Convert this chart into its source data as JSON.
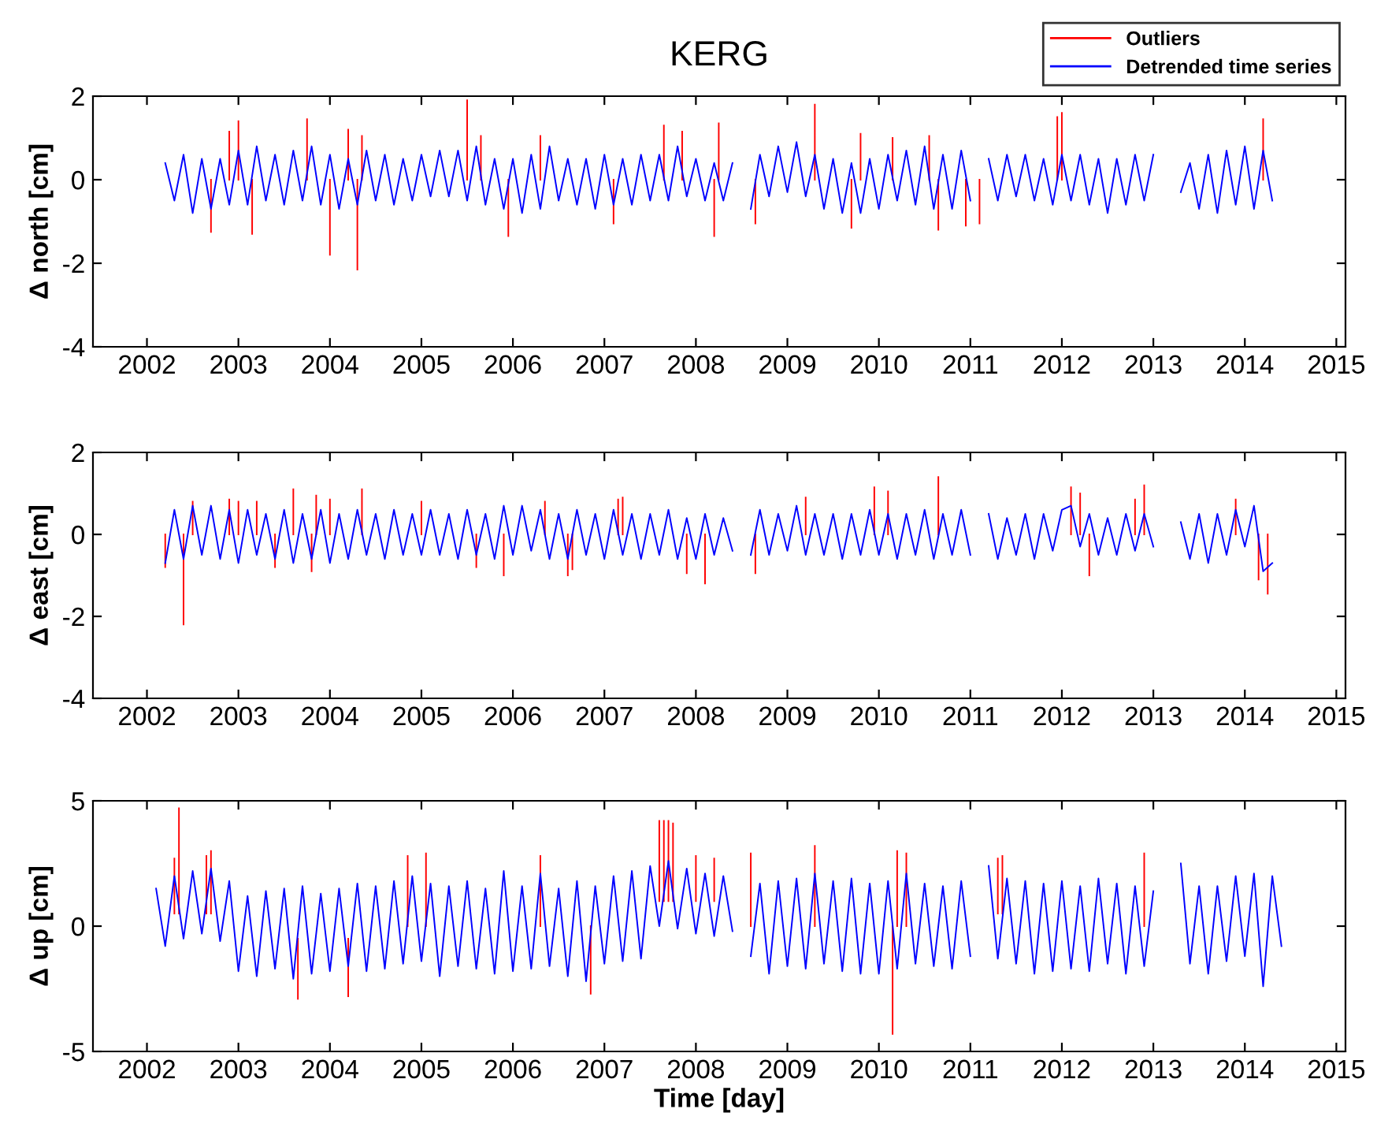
{
  "chart_data": [
    {
      "type": "line",
      "title": "KERG",
      "ylabel": "Δ north [cm]",
      "xlim": [
        2001.41,
        2015.1
      ],
      "xticks": [
        2002,
        2003,
        2004,
        2005,
        2006,
        2007,
        2008,
        2009,
        2010,
        2011,
        2012,
        2013,
        2014,
        2015
      ],
      "ylim": [
        -4,
        2
      ],
      "yticks": [
        -4,
        -2,
        0,
        2
      ],
      "grid": false,
      "legend": "top right",
      "series": [
        {
          "name": "Outliers",
          "color": "#ff0000",
          "x": [
            2002.7,
            2002.7,
            null,
            2002.9,
            2002.9,
            null,
            2003.0,
            2003.0,
            null,
            2003.15,
            2003.15,
            null,
            2003.75,
            2003.75,
            null,
            2004.0,
            2004.0,
            null,
            2004.2,
            2004.2,
            null,
            2004.3,
            2004.3,
            null,
            2004.35,
            2004.35,
            null,
            2005.5,
            2005.5,
            null,
            2005.65,
            2005.65,
            null,
            2005.95,
            2005.95,
            null,
            2006.3,
            2006.3,
            null,
            2007.1,
            2007.1,
            null,
            2007.65,
            2007.65,
            null,
            2007.85,
            2007.85,
            null,
            2008.2,
            2008.2,
            null,
            2008.25,
            2008.25,
            null,
            2008.65,
            2008.65,
            null,
            2009.3,
            2009.3,
            null,
            2009.7,
            2009.7,
            null,
            2009.8,
            2009.8,
            null,
            2010.15,
            2010.15,
            null,
            2010.55,
            2010.55,
            null,
            2010.65,
            2010.65,
            null,
            2010.95,
            2010.95,
            null,
            2011.1,
            2011.1,
            null,
            2011.95,
            2011.95,
            null,
            2012.0,
            2012.0,
            null,
            2014.2,
            2014.2
          ],
          "values": [
            0,
            -1.25,
            null,
            0,
            1.15,
            null,
            0,
            1.4,
            null,
            0,
            -1.3,
            null,
            0,
            1.45,
            null,
            0,
            -1.8,
            null,
            0,
            1.2,
            null,
            0,
            -2.15,
            null,
            0,
            1.05,
            null,
            0,
            1.9,
            null,
            0,
            1.05,
            null,
            0,
            -1.35,
            null,
            0,
            1.05,
            null,
            0,
            -1.05,
            null,
            0,
            1.3,
            null,
            0,
            1.15,
            null,
            0,
            -1.35,
            null,
            0,
            1.35,
            null,
            0,
            -1.05,
            null,
            0,
            1.8,
            null,
            0,
            -1.15,
            null,
            0,
            1.1,
            null,
            0,
            1.0,
            null,
            0,
            1.05,
            null,
            0,
            -1.2,
            null,
            0,
            -1.1,
            null,
            0,
            -1.05,
            null,
            0,
            1.5,
            null,
            0,
            1.6,
            null,
            0,
            1.45
          ]
        },
        {
          "name": "Detrended time series",
          "color": "#0000ff",
          "x": [
            2002.2,
            2002.3,
            2002.4,
            2002.5,
            2002.6,
            2002.7,
            2002.8,
            2002.9,
            2003.0,
            2003.1,
            2003.2,
            2003.3,
            2003.4,
            2003.5,
            2003.6,
            2003.7,
            2003.8,
            2003.9,
            2004.0,
            2004.1,
            2004.2,
            2004.3,
            2004.4,
            2004.5,
            2004.6,
            2004.7,
            2004.8,
            2004.9,
            2005.0,
            2005.1,
            2005.2,
            2005.3,
            2005.4,
            2005.5,
            2005.6,
            2005.7,
            2005.8,
            2005.9,
            2006.0,
            2006.1,
            2006.2,
            2006.3,
            2006.4,
            2006.5,
            2006.6,
            2006.7,
            2006.8,
            2006.9,
            2007.0,
            2007.1,
            2007.2,
            2007.3,
            2007.4,
            2007.5,
            2007.6,
            2007.7,
            2007.8,
            2007.9,
            2008.0,
            2008.1,
            2008.2,
            2008.3,
            2008.4,
            2008.5,
            2008.6,
            2008.7,
            2008.8,
            2008.9,
            2009.0,
            2009.1,
            2009.2,
            2009.3,
            2009.4,
            2009.5,
            2009.6,
            2009.7,
            2009.8,
            2009.9,
            2010.0,
            2010.1,
            2010.2,
            2010.3,
            2010.4,
            2010.5,
            2010.6,
            2010.7,
            2010.8,
            2010.9,
            2011.0,
            2011.1,
            2011.2,
            2011.3,
            2011.4,
            2011.5,
            2011.6,
            2011.7,
            2011.8,
            2011.9,
            2012.0,
            2012.1,
            2012.2,
            2012.3,
            2012.4,
            2012.5,
            2012.6,
            2012.7,
            2012.8,
            2012.9,
            2013.0,
            2013.1,
            2013.2,
            2013.3,
            2013.4,
            2013.5,
            2013.6,
            2013.7,
            2013.8,
            2013.9,
            2014.0,
            2014.1,
            2014.2,
            2014.3
          ],
          "values": [
            0.4,
            -0.5,
            0.6,
            -0.8,
            0.5,
            -0.7,
            0.5,
            -0.6,
            0.7,
            -0.6,
            0.8,
            -0.5,
            0.6,
            -0.6,
            0.7,
            -0.5,
            0.8,
            -0.6,
            0.6,
            -0.7,
            0.5,
            -0.6,
            0.7,
            -0.5,
            0.6,
            -0.6,
            0.5,
            -0.5,
            0.6,
            -0.4,
            0.7,
            -0.4,
            0.7,
            -0.5,
            0.8,
            -0.6,
            0.5,
            -0.7,
            0.5,
            -0.8,
            0.6,
            -0.7,
            0.8,
            -0.5,
            0.5,
            -0.6,
            0.5,
            -0.7,
            0.6,
            -0.6,
            0.5,
            -0.6,
            0.6,
            -0.5,
            0.6,
            -0.5,
            0.8,
            -0.4,
            0.5,
            -0.5,
            0.4,
            -0.5,
            0.4,
            null,
            -0.7,
            0.6,
            -0.4,
            0.8,
            -0.3,
            0.9,
            -0.4,
            0.6,
            -0.7,
            0.5,
            -0.8,
            0.4,
            -0.8,
            0.5,
            -0.7,
            0.6,
            -0.5,
            0.7,
            -0.6,
            0.8,
            -0.7,
            0.6,
            -0.7,
            0.7,
            -0.5,
            null,
            0.5,
            -0.5,
            0.6,
            -0.4,
            0.6,
            -0.5,
            0.5,
            -0.6,
            0.6,
            -0.5,
            0.6,
            -0.6,
            0.5,
            -0.8,
            0.5,
            -0.6,
            0.6,
            -0.5,
            0.6,
            null,
            null,
            -0.3,
            0.4,
            -0.7,
            0.6,
            -0.8,
            0.7,
            -0.6,
            0.8,
            -0.7,
            0.7,
            -0.5
          ]
        }
      ]
    },
    {
      "type": "line",
      "ylabel": "Δ east [cm]",
      "xlim": [
        2001.41,
        2015.1
      ],
      "xticks": [
        2002,
        2003,
        2004,
        2005,
        2006,
        2007,
        2008,
        2009,
        2010,
        2011,
        2012,
        2013,
        2014,
        2015
      ],
      "ylim": [
        -4,
        2
      ],
      "yticks": [
        -4,
        -2,
        0,
        2
      ],
      "grid": false,
      "series": [
        {
          "color": "#ff0000",
          "x": [
            2002.2,
            2002.2,
            null,
            2002.4,
            2002.4,
            null,
            2002.5,
            2002.5,
            null,
            2002.9,
            2002.9,
            null,
            2003.0,
            2003.0,
            null,
            2003.2,
            2003.2,
            null,
            2003.4,
            2003.4,
            null,
            2003.6,
            2003.6,
            null,
            2003.8,
            2003.8,
            null,
            2003.85,
            2003.85,
            null,
            2004.0,
            2004.0,
            null,
            2004.35,
            2004.35,
            null,
            2005.0,
            2005.0,
            null,
            2005.6,
            2005.6,
            null,
            2005.9,
            2005.9,
            null,
            2006.35,
            2006.35,
            null,
            2006.6,
            2006.6,
            null,
            2006.65,
            2006.65,
            null,
            2007.15,
            2007.15,
            null,
            2007.2,
            2007.2,
            null,
            2007.9,
            2007.9,
            null,
            2008.1,
            2008.1,
            null,
            2008.65,
            2008.65,
            null,
            2009.2,
            2009.2,
            null,
            2009.95,
            2009.95,
            null,
            2010.1,
            2010.1,
            null,
            2010.65,
            2010.65,
            null,
            2012.1,
            2012.1,
            null,
            2012.2,
            2012.2,
            null,
            2012.3,
            2012.3,
            null,
            2012.8,
            2012.8,
            null,
            2012.9,
            2012.9,
            null,
            2013.9,
            2013.9,
            null,
            2014.15,
            2014.15,
            null,
            2014.25,
            2014.25
          ],
          "values": [
            0,
            -0.8,
            null,
            0,
            -2.2,
            null,
            0,
            0.8,
            null,
            0,
            0.85,
            null,
            0,
            0.8,
            null,
            0,
            0.8,
            null,
            0,
            -0.8,
            null,
            0,
            1.1,
            null,
            0,
            -0.9,
            null,
            0,
            0.95,
            null,
            0,
            0.85,
            null,
            0,
            1.1,
            null,
            0,
            0.8,
            null,
            0,
            -0.8,
            null,
            0,
            -1.0,
            null,
            0,
            0.8,
            null,
            0,
            -1.0,
            null,
            0,
            -0.85,
            null,
            0,
            0.85,
            null,
            0,
            0.9,
            null,
            0,
            -0.95,
            null,
            0,
            -1.2,
            null,
            0,
            -0.95,
            null,
            0,
            0.9,
            null,
            0,
            1.15,
            null,
            0,
            1.05,
            null,
            0,
            1.4,
            null,
            0,
            1.15,
            null,
            0,
            1.0,
            null,
            0,
            -1.0,
            null,
            0,
            0.85,
            null,
            0,
            1.2,
            null,
            0,
            0.85,
            null,
            0,
            -1.1,
            null,
            0,
            -1.45
          ]
        },
        {
          "color": "#0000ff",
          "x": [
            2002.2,
            2002.3,
            2002.4,
            2002.5,
            2002.6,
            2002.7,
            2002.8,
            2002.9,
            2003.0,
            2003.1,
            2003.2,
            2003.3,
            2003.4,
            2003.5,
            2003.6,
            2003.7,
            2003.8,
            2003.9,
            2004.0,
            2004.1,
            2004.2,
            2004.3,
            2004.4,
            2004.5,
            2004.6,
            2004.7,
            2004.8,
            2004.9,
            2005.0,
            2005.1,
            2005.2,
            2005.3,
            2005.4,
            2005.5,
            2005.6,
            2005.7,
            2005.8,
            2005.9,
            2006.0,
            2006.1,
            2006.2,
            2006.3,
            2006.4,
            2006.5,
            2006.6,
            2006.7,
            2006.8,
            2006.9,
            2007.0,
            2007.1,
            2007.2,
            2007.3,
            2007.4,
            2007.5,
            2007.6,
            2007.7,
            2007.8,
            2007.9,
            2008.0,
            2008.1,
            2008.2,
            2008.3,
            2008.4,
            2008.5,
            2008.6,
            2008.7,
            2008.8,
            2008.9,
            2009.0,
            2009.1,
            2009.2,
            2009.3,
            2009.4,
            2009.5,
            2009.6,
            2009.7,
            2009.8,
            2009.9,
            2010.0,
            2010.1,
            2010.2,
            2010.3,
            2010.4,
            2010.5,
            2010.6,
            2010.7,
            2010.8,
            2010.9,
            2011.0,
            2011.1,
            2011.2,
            2011.3,
            2011.4,
            2011.5,
            2011.6,
            2011.7,
            2011.8,
            2011.9,
            2012.0,
            2012.1,
            2012.2,
            2012.3,
            2012.4,
            2012.5,
            2012.6,
            2012.7,
            2012.8,
            2012.9,
            2013.0,
            2013.1,
            2013.2,
            2013.3,
            2013.4,
            2013.5,
            2013.6,
            2013.7,
            2013.8,
            2013.9,
            2014.0,
            2014.1,
            2014.2,
            2014.3
          ],
          "values": [
            -0.7,
            0.6,
            -0.6,
            0.7,
            -0.5,
            0.7,
            -0.6,
            0.6,
            -0.7,
            0.6,
            -0.5,
            0.5,
            -0.6,
            0.6,
            -0.7,
            0.5,
            -0.6,
            0.6,
            -0.7,
            0.5,
            -0.6,
            0.6,
            -0.5,
            0.5,
            -0.6,
            0.6,
            -0.5,
            0.5,
            -0.5,
            0.6,
            -0.5,
            0.5,
            -0.6,
            0.6,
            -0.5,
            0.5,
            -0.6,
            0.7,
            -0.5,
            0.7,
            -0.4,
            0.6,
            -0.6,
            0.5,
            -0.6,
            0.6,
            -0.5,
            0.5,
            -0.6,
            0.6,
            -0.5,
            0.5,
            -0.6,
            0.5,
            -0.5,
            0.6,
            -0.6,
            0.4,
            -0.6,
            0.5,
            -0.5,
            0.4,
            -0.4,
            null,
            -0.5,
            0.6,
            -0.5,
            0.5,
            -0.4,
            0.7,
            -0.5,
            0.5,
            -0.5,
            0.5,
            -0.6,
            0.5,
            -0.5,
            0.6,
            -0.5,
            0.5,
            -0.6,
            0.5,
            -0.5,
            0.6,
            -0.6,
            0.5,
            -0.5,
            0.6,
            -0.5,
            null,
            0.5,
            -0.6,
            0.4,
            -0.5,
            0.5,
            -0.6,
            0.5,
            -0.4,
            0.6,
            0.7,
            -0.3,
            0.5,
            -0.5,
            0.4,
            -0.5,
            0.5,
            -0.4,
            0.5,
            -0.3,
            null,
            null,
            0.3,
            -0.6,
            0.5,
            -0.7,
            0.5,
            -0.5,
            0.6,
            -0.3,
            0.7,
            -0.9,
            -0.7
          ]
        }
      ]
    },
    {
      "type": "line",
      "ylabel": "Δ up [cm]",
      "xlabel": "Time [day]",
      "xlim": [
        2001.41,
        2015.1
      ],
      "xticks": [
        2002,
        2003,
        2004,
        2005,
        2006,
        2007,
        2008,
        2009,
        2010,
        2011,
        2012,
        2013,
        2014,
        2015
      ],
      "ylim": [
        -5,
        5
      ],
      "yticks": [
        -5,
        0,
        5
      ],
      "grid": false,
      "series": [
        {
          "color": "#ff0000",
          "x": [
            2002.3,
            2002.3,
            null,
            2002.35,
            2002.35,
            null,
            2002.65,
            2002.65,
            null,
            2002.7,
            2002.7,
            null,
            2003.65,
            2003.65,
            null,
            2004.2,
            2004.2,
            null,
            2004.85,
            2004.85,
            null,
            2005.05,
            2005.05,
            null,
            2006.3,
            2006.3,
            null,
            2006.85,
            2006.85,
            null,
            2007.6,
            2007.6,
            null,
            2007.65,
            2007.65,
            null,
            2007.7,
            2007.7,
            null,
            2007.75,
            2007.75,
            null,
            2008.0,
            2008.0,
            null,
            2008.2,
            2008.2,
            null,
            2008.6,
            2008.6,
            null,
            2009.3,
            2009.3,
            null,
            2010.15,
            2010.15,
            null,
            2010.2,
            2010.2,
            null,
            2010.3,
            2010.3,
            null,
            2011.3,
            2011.3,
            null,
            2011.35,
            2011.35,
            null,
            2012.9,
            2012.9
          ],
          "values": [
            0.5,
            2.7,
            null,
            0.5,
            4.7,
            null,
            0.5,
            2.8,
            null,
            0.5,
            3.0,
            null,
            -0.5,
            -2.9,
            null,
            -0.5,
            -2.8,
            null,
            0,
            2.8,
            null,
            0,
            2.9,
            null,
            0,
            2.8,
            null,
            0,
            -2.7,
            null,
            1,
            4.2,
            null,
            1,
            4.2,
            null,
            1,
            4.2,
            null,
            1,
            4.1,
            null,
            1,
            2.8,
            null,
            1,
            2.7,
            null,
            0,
            2.9,
            null,
            0,
            3.2,
            null,
            0,
            -4.3,
            null,
            0,
            3.0,
            null,
            0,
            2.9,
            null,
            0.5,
            2.7,
            null,
            0.5,
            2.8,
            null,
            0,
            2.9
          ]
        },
        {
          "color": "#0000ff",
          "x": [
            2002.1,
            2002.2,
            2002.3,
            2002.4,
            2002.5,
            2002.6,
            2002.7,
            2002.8,
            2002.9,
            2003.0,
            2003.1,
            2003.2,
            2003.3,
            2003.4,
            2003.5,
            2003.6,
            2003.7,
            2003.8,
            2003.9,
            2004.0,
            2004.1,
            2004.2,
            2004.3,
            2004.4,
            2004.5,
            2004.6,
            2004.7,
            2004.8,
            2004.9,
            2005.0,
            2005.1,
            2005.2,
            2005.3,
            2005.4,
            2005.5,
            2005.6,
            2005.7,
            2005.8,
            2005.9,
            2006.0,
            2006.1,
            2006.2,
            2006.3,
            2006.4,
            2006.5,
            2006.6,
            2006.7,
            2006.8,
            2006.9,
            2007.0,
            2007.1,
            2007.2,
            2007.3,
            2007.4,
            2007.5,
            2007.6,
            2007.7,
            2007.8,
            2007.9,
            2008.0,
            2008.1,
            2008.2,
            2008.3,
            2008.4,
            2008.5,
            2008.6,
            2008.7,
            2008.8,
            2008.9,
            2009.0,
            2009.1,
            2009.2,
            2009.3,
            2009.4,
            2009.5,
            2009.6,
            2009.7,
            2009.8,
            2009.9,
            2010.0,
            2010.1,
            2010.2,
            2010.3,
            2010.4,
            2010.5,
            2010.6,
            2010.7,
            2010.8,
            2010.9,
            2011.0,
            2011.1,
            2011.2,
            2011.3,
            2011.4,
            2011.5,
            2011.6,
            2011.7,
            2011.8,
            2011.9,
            2012.0,
            2012.1,
            2012.2,
            2012.3,
            2012.4,
            2012.5,
            2012.6,
            2012.7,
            2012.8,
            2012.9,
            2013.0,
            2013.1,
            2013.2,
            2013.3,
            2013.4,
            2013.5,
            2013.6,
            2013.7,
            2013.8,
            2013.9,
            2014.0,
            2014.1,
            2014.2,
            2014.3,
            2014.4
          ],
          "values": [
            1.5,
            -0.8,
            2.0,
            -0.5,
            2.2,
            -0.3,
            2.3,
            -0.6,
            1.8,
            -1.8,
            1.2,
            -2.0,
            1.4,
            -1.7,
            1.5,
            -2.1,
            1.6,
            -1.9,
            1.3,
            -1.8,
            1.5,
            -1.6,
            1.7,
            -1.8,
            1.6,
            -1.7,
            1.8,
            -1.5,
            2.0,
            -1.4,
            1.7,
            -2.0,
            1.6,
            -1.6,
            1.8,
            -1.7,
            1.5,
            -1.9,
            2.2,
            -1.8,
            1.6,
            -1.7,
            2.1,
            -1.6,
            1.5,
            -2.0,
            1.8,
            -2.2,
            1.6,
            -1.5,
            2.0,
            -1.4,
            2.2,
            -1.3,
            2.4,
            0.0,
            2.6,
            -0.1,
            2.3,
            -0.3,
            2.1,
            -0.4,
            2.0,
            -0.2,
            null,
            -1.2,
            1.7,
            -1.9,
            1.8,
            -1.6,
            1.9,
            -1.7,
            2.1,
            -1.5,
            1.8,
            -1.8,
            1.9,
            -1.9,
            1.7,
            -1.9,
            1.8,
            -1.7,
            2.1,
            -1.5,
            1.7,
            -1.6,
            1.6,
            -1.7,
            1.8,
            -1.2,
            null,
            2.4,
            -1.3,
            1.9,
            -1.5,
            1.8,
            -1.9,
            1.7,
            -1.8,
            1.8,
            -1.7,
            1.6,
            -1.8,
            1.9,
            -1.5,
            1.7,
            -1.9,
            1.6,
            -1.6,
            1.4,
            null,
            null,
            2.5,
            -1.5,
            1.6,
            -1.9,
            1.6,
            -1.4,
            2.0,
            -1.2,
            2.1,
            -2.4,
            2.0,
            -0.8
          ]
        }
      ]
    }
  ]
}
